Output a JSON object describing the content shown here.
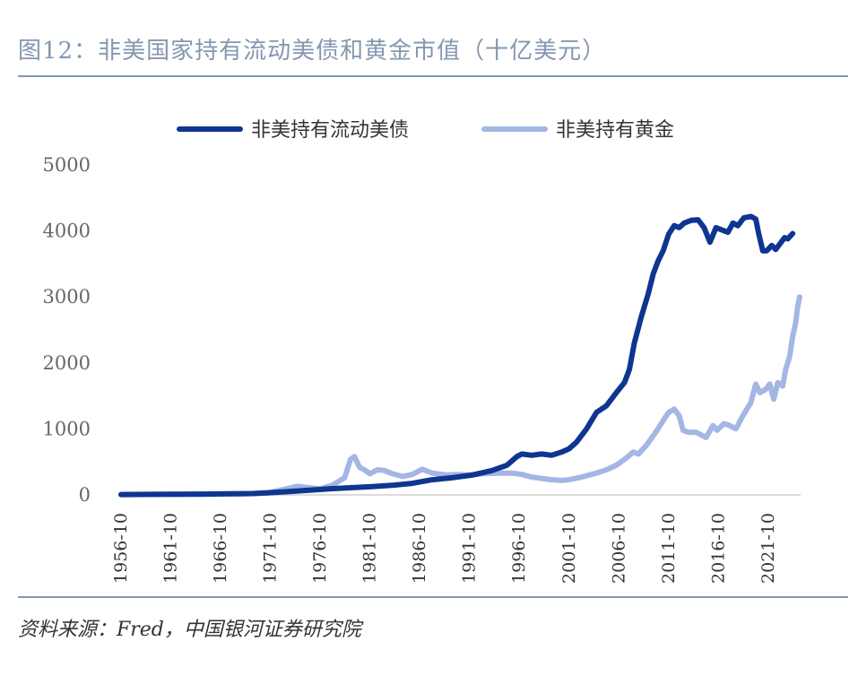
{
  "title": "图12：非美国家持有流动美债和黄金市值（十亿美元）",
  "source": "资料来源：Fred，中国银河证券研究院",
  "chart_data": {
    "type": "line",
    "ylim": [
      0,
      5000
    ],
    "yticks": [
      0,
      1000,
      2000,
      3000,
      4000,
      5000
    ],
    "xlim": [
      1956.75,
      2025.0
    ],
    "xtick_labels": [
      "1956-10",
      "1961-10",
      "1966-10",
      "1971-10",
      "1976-10",
      "1981-10",
      "1986-10",
      "1991-10",
      "1996-10",
      "2001-10",
      "2006-10",
      "2011-10",
      "2016-10",
      "2021-10"
    ],
    "xtick_values": [
      1956.75,
      1961.75,
      1966.75,
      1971.75,
      1976.75,
      1981.75,
      1986.75,
      1991.75,
      1996.75,
      2001.75,
      2006.75,
      2011.75,
      2016.75,
      2021.75
    ],
    "series": [
      {
        "name": "非美持有流动美债",
        "color": "#0e3590",
        "points": [
          [
            1956.75,
            5
          ],
          [
            1960,
            8
          ],
          [
            1965,
            12
          ],
          [
            1970,
            20
          ],
          [
            1972,
            35
          ],
          [
            1974,
            55
          ],
          [
            1976,
            75
          ],
          [
            1978,
            95
          ],
          [
            1980,
            110
          ],
          [
            1982,
            125
          ],
          [
            1984,
            145
          ],
          [
            1986,
            175
          ],
          [
            1988,
            230
          ],
          [
            1990,
            260
          ],
          [
            1992,
            300
          ],
          [
            1994,
            370
          ],
          [
            1995.5,
            450
          ],
          [
            1996.5,
            580
          ],
          [
            1997,
            620
          ],
          [
            1998,
            600
          ],
          [
            1999,
            620
          ],
          [
            2000,
            600
          ],
          [
            2001,
            650
          ],
          [
            2001.75,
            700
          ],
          [
            2002.5,
            800
          ],
          [
            2003.5,
            1000
          ],
          [
            2004.5,
            1250
          ],
          [
            2005.5,
            1350
          ],
          [
            2006.5,
            1550
          ],
          [
            2007.3,
            1700
          ],
          [
            2007.8,
            1900
          ],
          [
            2008.3,
            2300
          ],
          [
            2009,
            2700
          ],
          [
            2009.7,
            3050
          ],
          [
            2010.2,
            3350
          ],
          [
            2010.7,
            3550
          ],
          [
            2011.2,
            3700
          ],
          [
            2011.75,
            3950
          ],
          [
            2012.3,
            4080
          ],
          [
            2012.8,
            4050
          ],
          [
            2013.3,
            4120
          ],
          [
            2014,
            4160
          ],
          [
            2014.7,
            4170
          ],
          [
            2015.3,
            4050
          ],
          [
            2015.9,
            3830
          ],
          [
            2016.5,
            4050
          ],
          [
            2017.2,
            4010
          ],
          [
            2017.7,
            3980
          ],
          [
            2018.2,
            4120
          ],
          [
            2018.7,
            4080
          ],
          [
            2019.3,
            4200
          ],
          [
            2020,
            4220
          ],
          [
            2020.5,
            4180
          ],
          [
            2020.8,
            3950
          ],
          [
            2021.2,
            3700
          ],
          [
            2021.6,
            3700
          ],
          [
            2022.1,
            3780
          ],
          [
            2022.5,
            3720
          ],
          [
            2023.0,
            3820
          ],
          [
            2023.4,
            3900
          ],
          [
            2023.7,
            3880
          ],
          [
            2024.2,
            3960
          ]
        ]
      },
      {
        "name": "非美持有黄金",
        "color": "#a3b6e4",
        "points": [
          [
            1956.75,
            5
          ],
          [
            1960,
            8
          ],
          [
            1965,
            10
          ],
          [
            1969,
            15
          ],
          [
            1971.5,
            30
          ],
          [
            1973,
            80
          ],
          [
            1974.5,
            130
          ],
          [
            1975.5,
            110
          ],
          [
            1976.75,
            90
          ],
          [
            1978,
            150
          ],
          [
            1979.2,
            260
          ],
          [
            1979.8,
            540
          ],
          [
            1980.2,
            580
          ],
          [
            1980.7,
            420
          ],
          [
            1981.2,
            380
          ],
          [
            1981.75,
            320
          ],
          [
            1982.5,
            380
          ],
          [
            1983.2,
            370
          ],
          [
            1984,
            320
          ],
          [
            1985,
            280
          ],
          [
            1986,
            310
          ],
          [
            1987,
            390
          ],
          [
            1988,
            330
          ],
          [
            1989.5,
            300
          ],
          [
            1990.5,
            310
          ],
          [
            1991.75,
            300
          ],
          [
            1993,
            320
          ],
          [
            1994.5,
            330
          ],
          [
            1996,
            330
          ],
          [
            1997,
            310
          ],
          [
            1998,
            270
          ],
          [
            1999,
            250
          ],
          [
            2000,
            230
          ],
          [
            2001,
            220
          ],
          [
            2001.75,
            230
          ],
          [
            2003,
            270
          ],
          [
            2004.5,
            330
          ],
          [
            2005.5,
            380
          ],
          [
            2006.5,
            450
          ],
          [
            2007.5,
            560
          ],
          [
            2008.2,
            650
          ],
          [
            2008.7,
            620
          ],
          [
            2009.5,
            750
          ],
          [
            2010.5,
            960
          ],
          [
            2011.3,
            1150
          ],
          [
            2011.75,
            1250
          ],
          [
            2012.3,
            1300
          ],
          [
            2012.8,
            1200
          ],
          [
            2013.2,
            980
          ],
          [
            2013.7,
            950
          ],
          [
            2014.5,
            950
          ],
          [
            2015.5,
            870
          ],
          [
            2016.2,
            1050
          ],
          [
            2016.6,
            980
          ],
          [
            2017.3,
            1080
          ],
          [
            2017.9,
            1050
          ],
          [
            2018.5,
            1000
          ],
          [
            2019.2,
            1200
          ],
          [
            2020.0,
            1400
          ],
          [
            2020.5,
            1680
          ],
          [
            2020.9,
            1550
          ],
          [
            2021.5,
            1600
          ],
          [
            2021.9,
            1680
          ],
          [
            2022.3,
            1450
          ],
          [
            2022.7,
            1700
          ],
          [
            2023.2,
            1650
          ],
          [
            2023.5,
            1900
          ],
          [
            2023.9,
            2100
          ],
          [
            2024.2,
            2400
          ],
          [
            2024.5,
            2600
          ],
          [
            2024.7,
            2850
          ],
          [
            2024.9,
            3000
          ]
        ]
      }
    ]
  }
}
